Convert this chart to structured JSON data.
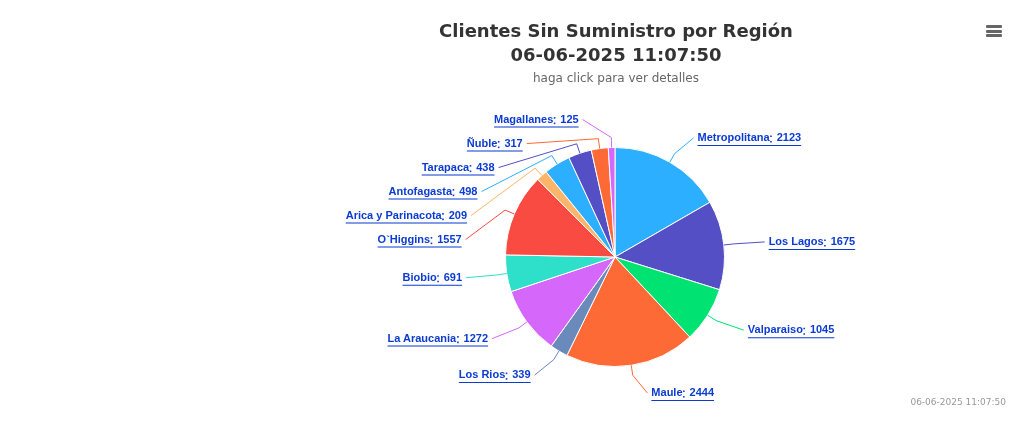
{
  "chart_data": {
    "type": "pie",
    "title": "Clientes Sin Suministro por Región\n06-06-2025 11:07:50",
    "subtitle": "haga click para ver detalles",
    "categories": [
      "Metropolitana",
      "Los Lagos",
      "Valparaiso",
      "Maule",
      "Los Rios",
      "La Araucania",
      "Biobio",
      "O`Higgins",
      "Arica y Parinacota",
      "Antofagasta",
      "Tarapaca",
      "Ñuble",
      "Magallanes"
    ],
    "values": [
      2123,
      1675,
      1045,
      2444,
      339,
      1272,
      691,
      1557,
      209,
      498,
      438,
      317,
      125
    ],
    "colors": [
      "#2caffe",
      "#544fc5",
      "#00e272",
      "#fe6a35",
      "#6b8abc",
      "#d568fb",
      "#2ee0ca",
      "#fa4b42",
      "#feb56a",
      "#2caffe",
      "#544fc5",
      "#fe6a35",
      "#d568fb"
    ],
    "data_labels": true,
    "legend": false,
    "annotations": [
      "06-06-2025 11:07:50"
    ]
  }
}
